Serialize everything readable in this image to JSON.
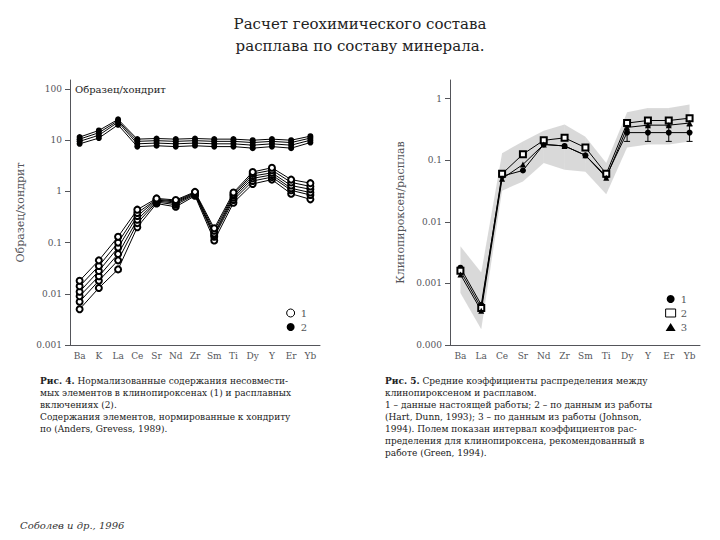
{
  "chart_data": [
    {
      "type": "line",
      "title": "Расчет геохимического состава\nрасплава по составу минерала.",
      "source": "Соболев и др., 1996",
      "note": "Образец/хондрит",
      "caption_label": "Рис. 4.",
      "caption": "Нормализованные содержания несовмести-\nмых элементов в клинопироксенах (1) и расплавных\nвключениях (2).\nСодержания элементов, нормированные к хондриту\nпо (Anders, Grevess, 1989).",
      "categories": [
        "Ba",
        "K",
        "La",
        "Ce",
        "Sr",
        "Nd",
        "Zr",
        "Sm",
        "Ti",
        "Dy",
        "Y",
        "Er",
        "Yb"
      ],
      "ylabel": "Образец/хондрит",
      "log": "y",
      "ylim": [
        0.001,
        150
      ],
      "yticks": [
        0.001,
        0.01,
        0.1,
        1,
        10,
        100
      ],
      "grid": false,
      "legend": "lower right",
      "series": [
        {
          "name": "1",
          "color": "#000000",
          "marker": "open_circle",
          "values": [
            0.005,
            0.013,
            0.03,
            0.2,
            0.58,
            0.5,
            0.82,
            0.11,
            0.6,
            1.4,
            1.7,
            0.9,
            0.7
          ]
        },
        {
          "name": "1",
          "color": "#000000",
          "marker": "open_circle",
          "values": [
            0.007,
            0.018,
            0.045,
            0.24,
            0.62,
            0.55,
            0.86,
            0.13,
            0.68,
            1.6,
            1.9,
            1.05,
            0.85
          ]
        },
        {
          "name": "1",
          "color": "#000000",
          "marker": "open_circle",
          "values": [
            0.009,
            0.022,
            0.06,
            0.28,
            0.65,
            0.59,
            0.89,
            0.14,
            0.75,
            1.8,
            2.1,
            1.15,
            0.95
          ]
        },
        {
          "name": "1",
          "color": "#000000",
          "marker": "open_circle",
          "values": [
            0.011,
            0.028,
            0.08,
            0.33,
            0.68,
            0.62,
            0.92,
            0.15,
            0.82,
            2.0,
            2.3,
            1.3,
            1.1
          ]
        },
        {
          "name": "1",
          "color": "#000000",
          "marker": "open_circle",
          "values": [
            0.014,
            0.035,
            0.1,
            0.38,
            0.7,
            0.65,
            0.95,
            0.17,
            0.88,
            2.2,
            2.6,
            1.5,
            1.25
          ]
        },
        {
          "name": "1",
          "color": "#000000",
          "marker": "open_circle",
          "values": [
            0.018,
            0.045,
            0.13,
            0.44,
            0.73,
            0.68,
            0.98,
            0.19,
            0.95,
            2.4,
            2.9,
            1.7,
            1.45
          ]
        },
        {
          "name": "2",
          "color": "#000000",
          "marker": "circle",
          "values": [
            8.5,
            11.0,
            20.0,
            7.5,
            7.8,
            7.5,
            7.8,
            7.5,
            7.5,
            7.0,
            7.5,
            7.0,
            9.0
          ]
        },
        {
          "name": "2",
          "color": "#000000",
          "marker": "circle",
          "values": [
            9.5,
            12.5,
            22.5,
            8.5,
            8.8,
            8.5,
            8.8,
            8.5,
            8.5,
            8.0,
            8.5,
            8.0,
            10.0
          ]
        },
        {
          "name": "2",
          "color": "#000000",
          "marker": "circle",
          "values": [
            10.5,
            14.0,
            24.0,
            9.5,
            9.8,
            9.5,
            9.8,
            9.5,
            9.5,
            9.0,
            9.5,
            9.0,
            11.0
          ]
        },
        {
          "name": "2",
          "color": "#000000",
          "marker": "circle",
          "values": [
            11.5,
            15.5,
            25.5,
            10.5,
            10.8,
            10.5,
            10.8,
            10.5,
            10.5,
            10.0,
            10.5,
            10.0,
            12.0
          ]
        }
      ]
    },
    {
      "type": "line",
      "caption_label": "Рис. 5.",
      "caption": "Средние коэффициенты распределения между\nклинопироксеном и расплавом.\n1 – данные настоящей работы; 2 – по данным из работы\n(Hart, Dunn, 1993); 3 – по данным из работы (Johnson,\n1994). Полем показан интервал коэффициентов рас-\nпределения для клинопироксена, рекомендованный в\nработе (Green, 1994).",
      "categories": [
        "Ba",
        "La",
        "Ce",
        "Sr",
        "Nd",
        "Zr",
        "Sm",
        "Ti",
        "Dy",
        "Y",
        "Er",
        "Yb"
      ],
      "ylabel": "Клинопироксен/расплав",
      "log": "y",
      "ylim": [
        0.0001,
        2.0
      ],
      "yticks": [
        {
          "value": 0.0001,
          "label": "0.000"
        },
        0.001,
        0.01,
        0.1,
        1
      ],
      "grid": false,
      "legend": "lower right",
      "band": {
        "color": "#808080",
        "upper": [
          0.004,
          0.0015,
          0.13,
          0.2,
          0.3,
          0.38,
          0.24,
          0.09,
          0.6,
          0.7,
          0.7,
          0.8
        ],
        "lower": [
          0.0007,
          0.00018,
          0.032,
          0.045,
          0.09,
          0.07,
          0.065,
          0.028,
          0.16,
          0.18,
          0.18,
          0.2
        ]
      },
      "series": [
        {
          "name": "1",
          "color": "#000000",
          "marker": "circle",
          "values": [
            0.0018,
            0.00045,
            0.055,
            0.068,
            0.18,
            0.17,
            0.12,
            0.055,
            0.28,
            0.28,
            0.28,
            0.28
          ],
          "errors": [
            null,
            null,
            null,
            null,
            null,
            null,
            null,
            null,
            0.0784,
            0.0784,
            0.0784,
            0.0784
          ]
        },
        {
          "name": "2",
          "color": "#000000",
          "marker": "open_square",
          "values": [
            0.0016,
            0.0004,
            0.06,
            0.125,
            0.21,
            0.23,
            0.16,
            0.06,
            0.4,
            0.44,
            0.44,
            0.48
          ]
        },
        {
          "name": "3",
          "color": "#000000",
          "marker": "triangle",
          "values": [
            0.0014,
            0.00036,
            0.05,
            0.085,
            0.18,
            0.17,
            0.12,
            0.052,
            0.34,
            0.37,
            0.37,
            0.4
          ]
        }
      ]
    }
  ]
}
